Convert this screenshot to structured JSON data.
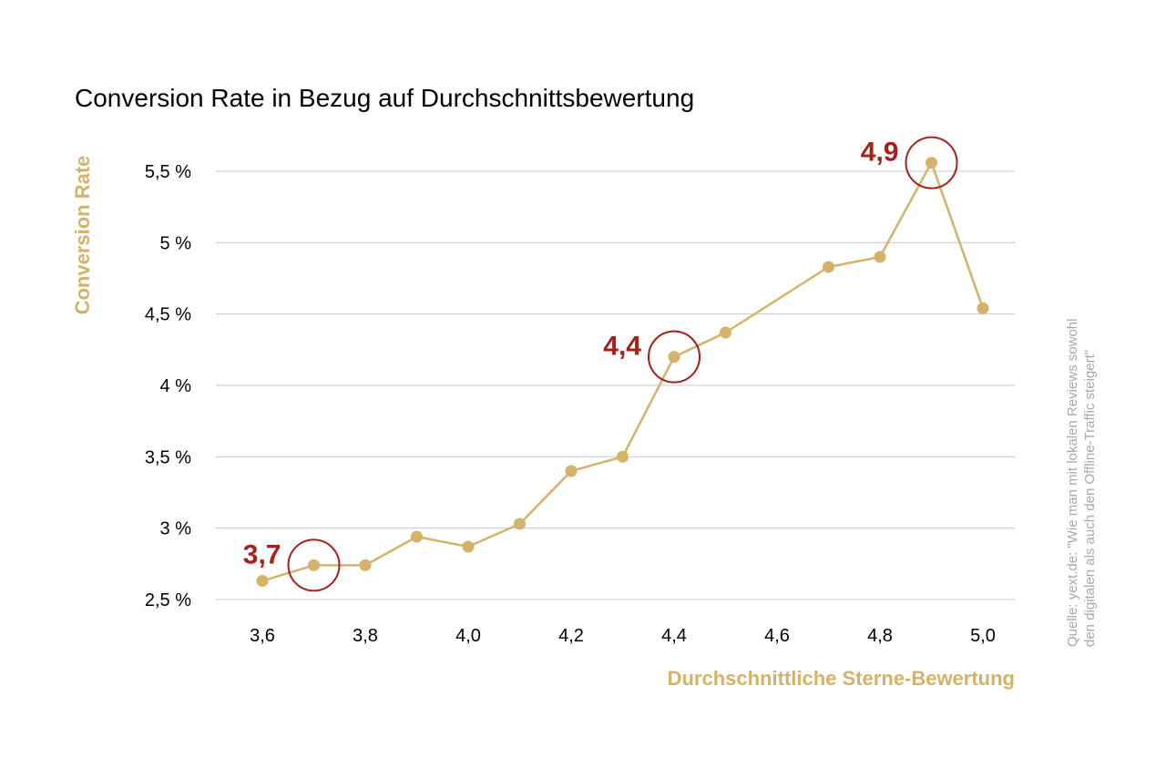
{
  "chart_data": {
    "type": "line",
    "title": "Conversion Rate in Bezug auf Durchschnittsbewertung",
    "xlabel": "Durchschnittliche Sterne-Bewertung",
    "ylabel": "Conversion Rate",
    "x_ticks": [
      {
        "value": 3.6,
        "label": "3,6"
      },
      {
        "value": 3.8,
        "label": "3,8"
      },
      {
        "value": 4.0,
        "label": "4,0"
      },
      {
        "value": 4.2,
        "label": "4,2"
      },
      {
        "value": 4.4,
        "label": "4,4"
      },
      {
        "value": 4.6,
        "label": "4,6"
      },
      {
        "value": 4.8,
        "label": "4,8"
      },
      {
        "value": 5.0,
        "label": "5,0"
      }
    ],
    "y_ticks": [
      {
        "value": 2.5,
        "label": "2,5 %"
      },
      {
        "value": 3.0,
        "label": "3 %"
      },
      {
        "value": 3.5,
        "label": "3,5 %"
      },
      {
        "value": 4.0,
        "label": "4 %"
      },
      {
        "value": 4.5,
        "label": "4,5 %"
      },
      {
        "value": 5.0,
        "label": "5 %"
      },
      {
        "value": 5.5,
        "label": "5,5 %"
      }
    ],
    "xlim": [
      3.6,
      5.0
    ],
    "ylim": [
      2.5,
      5.5
    ],
    "grid": "horizontal",
    "series": [
      {
        "x": [
          3.6,
          3.7,
          3.8,
          3.9,
          4.0,
          4.1,
          4.2,
          4.3,
          4.4,
          4.5,
          4.7,
          4.8,
          4.9,
          5.0
        ],
        "y": [
          2.63,
          2.74,
          2.74,
          2.94,
          2.87,
          3.03,
          3.4,
          3.5,
          4.2,
          4.37,
          4.83,
          4.9,
          5.56,
          4.54
        ]
      }
    ],
    "annotations": [
      {
        "label": "3,7",
        "x": 3.7,
        "y": 2.74
      },
      {
        "label": "4,4",
        "x": 4.4,
        "y": 4.2
      },
      {
        "label": "4,9",
        "x": 4.9,
        "y": 5.56
      }
    ],
    "source": "Quelle: yext.de: \"Wie man mit lokalen Reviews sowohl den digitalen als auch den Offline-Traffic steigert\"",
    "colors": {
      "line": "#d4b26a",
      "marker": "#d4b26a",
      "axis_label": "#d4b26a",
      "annotation": "#a8201a",
      "grid": "#c8c8c8",
      "source_text": "#a8a8a8",
      "text": "#000000"
    }
  }
}
